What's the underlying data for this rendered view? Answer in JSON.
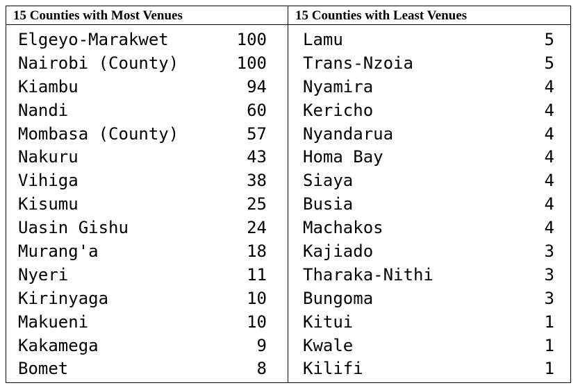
{
  "most": {
    "title": "15 Counties with Most Venues",
    "rows": [
      {
        "county": "Elgeyo-Marakwet",
        "venues": "100"
      },
      {
        "county": "Nairobi (County)",
        "venues": "100"
      },
      {
        "county": "Kiambu",
        "venues": "94"
      },
      {
        "county": "Nandi",
        "venues": "60"
      },
      {
        "county": "Mombasa (County)",
        "venues": "57"
      },
      {
        "county": "Nakuru",
        "venues": "43"
      },
      {
        "county": "Vihiga",
        "venues": "38"
      },
      {
        "county": "Kisumu",
        "venues": "25"
      },
      {
        "county": "Uasin Gishu",
        "venues": "24"
      },
      {
        "county": "Murang'a",
        "venues": "18"
      },
      {
        "county": "Nyeri",
        "venues": "11"
      },
      {
        "county": "Kirinyaga",
        "venues": "10"
      },
      {
        "county": "Makueni",
        "venues": "10"
      },
      {
        "county": "Kakamega",
        "venues": "9"
      },
      {
        "county": "Bomet",
        "venues": "8"
      }
    ]
  },
  "least": {
    "title": "15 Counties with Least Venues",
    "rows": [
      {
        "county": "Lamu",
        "venues": "5"
      },
      {
        "county": "Trans-Nzoia",
        "venues": "5"
      },
      {
        "county": "Nyamira",
        "venues": "4"
      },
      {
        "county": "Kericho",
        "venues": "4"
      },
      {
        "county": "Nyandarua",
        "venues": "4"
      },
      {
        "county": "Homa Bay",
        "venues": "4"
      },
      {
        "county": "Siaya",
        "venues": "4"
      },
      {
        "county": "Busia",
        "venues": "4"
      },
      {
        "county": "Machakos",
        "venues": "4"
      },
      {
        "county": "Kajiado",
        "venues": "3"
      },
      {
        "county": "Tharaka-Nithi",
        "venues": "3"
      },
      {
        "county": "Bungoma",
        "venues": "3"
      },
      {
        "county": "Kitui",
        "venues": "1"
      },
      {
        "county": "Kwale",
        "venues": "1"
      },
      {
        "county": "Kilifi",
        "venues": "1"
      }
    ]
  }
}
